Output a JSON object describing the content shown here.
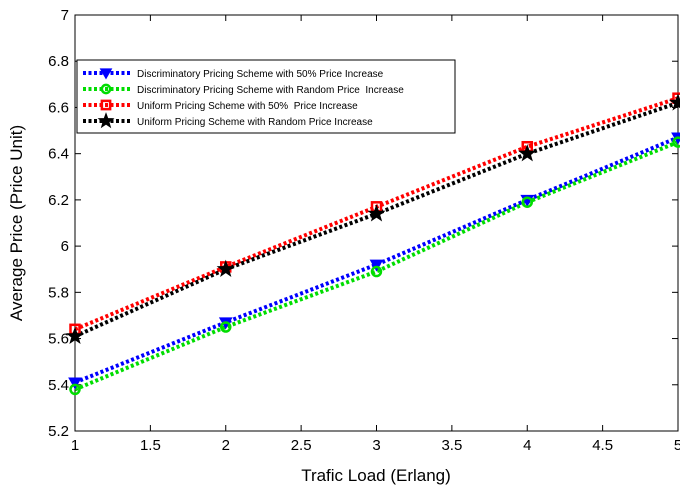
{
  "chart_data": {
    "type": "line",
    "title": "",
    "xlabel": "Trafic Load (Erlang)",
    "ylabel": "Average Price (Price Unit)",
    "xlim": [
      1,
      5
    ],
    "ylim": [
      5.2,
      7
    ],
    "x_ticks": [
      1,
      1.5,
      2,
      2.5,
      3,
      3.5,
      4,
      4.5,
      5
    ],
    "x_tick_labels": [
      "1",
      "1.5",
      "2",
      "2.5",
      "3",
      "3.5",
      "4",
      "4.5",
      "5"
    ],
    "y_ticks": [
      5.2,
      5.4,
      5.6,
      5.8,
      6,
      6.2,
      6.4,
      6.6,
      6.8,
      7
    ],
    "y_tick_labels": [
      "5.2",
      "5.4",
      "5.6",
      "5.8",
      "6",
      "6.2",
      "6.4",
      "6.6",
      "6.8",
      "7"
    ],
    "grid": false,
    "legend_position": "top-left",
    "x": [
      1,
      2,
      3,
      4,
      5
    ],
    "series": [
      {
        "name": "Discriminatory Pricing Scheme with 50% Price Increase",
        "color": "#0000ff",
        "marker": "triangle-down",
        "values": [
          5.41,
          5.67,
          5.92,
          6.2,
          6.47
        ]
      },
      {
        "name": "Discriminatory Pricing Scheme with Random Price  Increase",
        "color": "#00dd00",
        "marker": "circle",
        "values": [
          5.38,
          5.65,
          5.89,
          6.19,
          6.45
        ]
      },
      {
        "name": "Uniform Pricing Scheme with 50%  Price Increase",
        "color": "#ff0000",
        "marker": "square",
        "values": [
          5.64,
          5.91,
          6.17,
          6.43,
          6.64
        ]
      },
      {
        "name": "Uniform Pricing Scheme with Random Price Increase",
        "color": "#000000",
        "marker": "star",
        "values": [
          5.61,
          5.9,
          6.14,
          6.4,
          6.62
        ]
      }
    ]
  }
}
